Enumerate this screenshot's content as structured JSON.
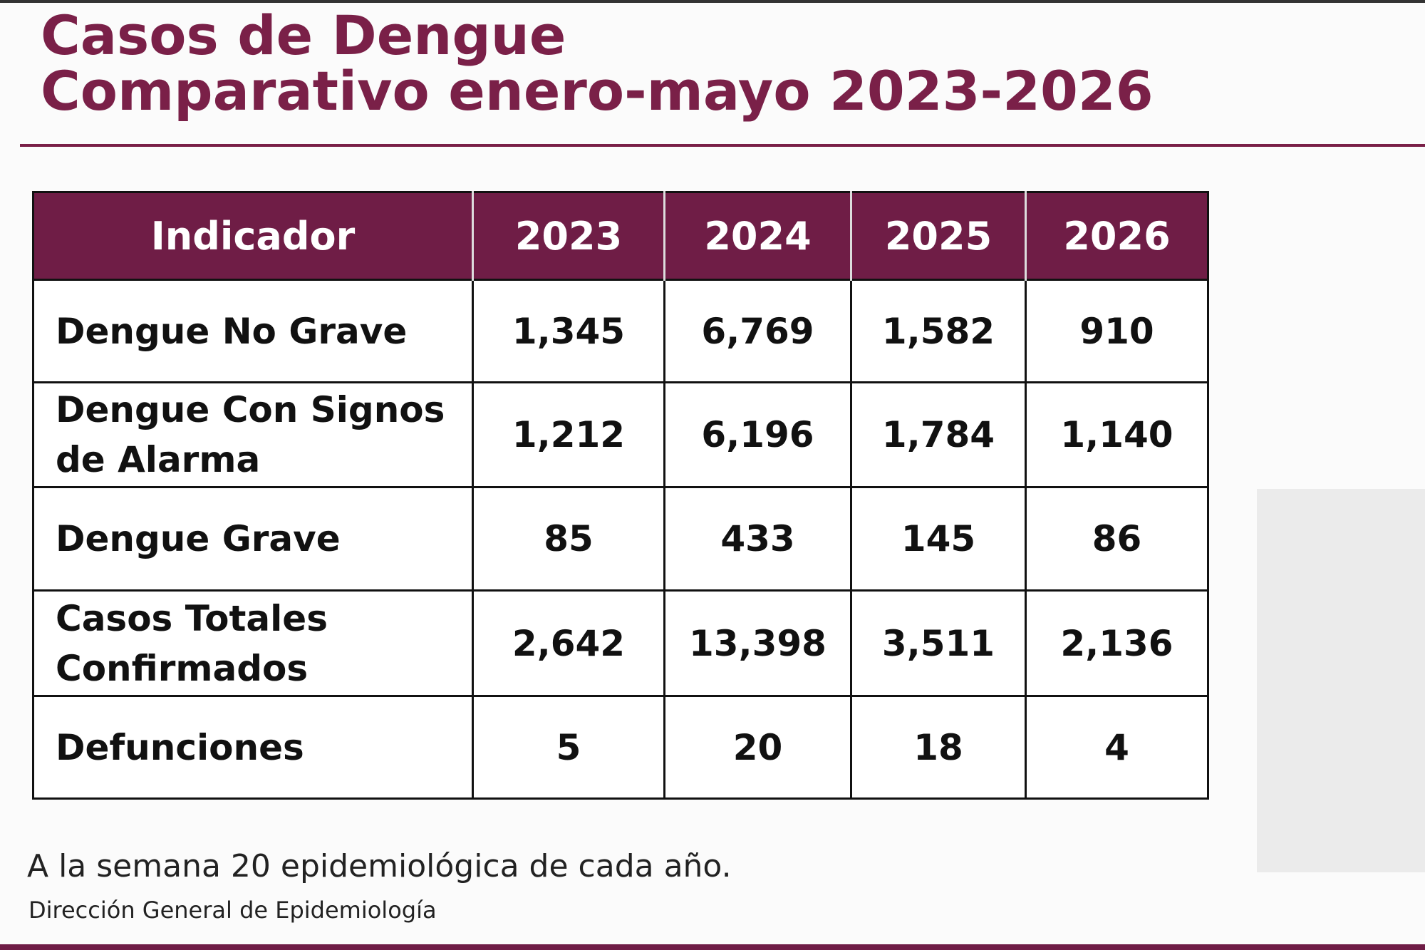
{
  "header": {
    "title_line1": "Casos de Dengue",
    "title_line2": "Comparativo enero-mayo 2023-2026"
  },
  "table": {
    "columns": [
      "Indicador",
      "2023",
      "2024",
      "2025",
      "2026"
    ],
    "rows": [
      [
        "Dengue No Grave",
        "1,345",
        "6,769",
        "1,582",
        "910"
      ],
      [
        "Dengue Con Signos de Alarma",
        "1,212",
        "6,196",
        "1,784",
        "1,140"
      ],
      [
        "Dengue Grave",
        "85",
        "433",
        "145",
        "86"
      ],
      [
        "Casos Totales Confirmados",
        "2,642",
        "13,398",
        "3,511",
        "2,136"
      ],
      [
        "Defunciones",
        "5",
        "20",
        "18",
        "4"
      ]
    ]
  },
  "footer": {
    "note": "A la semana 20 epidemiológica de cada año.",
    "source": "Dirección General de Epidemiología"
  }
}
